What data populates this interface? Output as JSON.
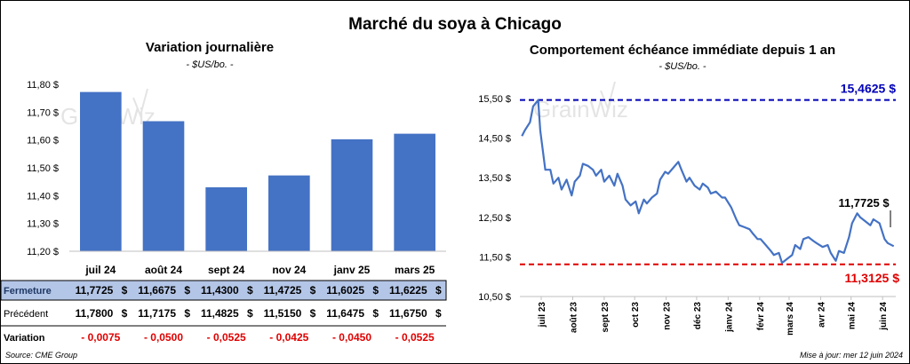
{
  "title": "Marché du soya à Chicago",
  "footer": {
    "source": "Source: CME Group",
    "updated": "Mise à jour: mer 12 juin 2024"
  },
  "watermark": "GrainWiz",
  "colors": {
    "bar": "#4472C4",
    "line": "#4472C4",
    "high": "#0000B8",
    "low": "#E00000",
    "table_highlight": "#B4C6E7",
    "negative": "#E00000"
  },
  "chart_data": [
    {
      "type": "bar",
      "title": "Variation journalière",
      "subtitle": "- $US/bo. -",
      "categories": [
        "juil 24",
        "août 24",
        "sept 24",
        "nov 24",
        "janv 25",
        "mars 25"
      ],
      "values": [
        11.7725,
        11.6675,
        11.43,
        11.4725,
        11.6025,
        11.6225
      ],
      "ylim": [
        11.2,
        11.8
      ],
      "yticks": [
        "11,80 $",
        "11,70 $",
        "11,60 $",
        "11,50 $",
        "11,40 $",
        "11,30 $",
        "11,20 $"
      ],
      "grid": false,
      "table": {
        "rows": [
          {
            "label": "Fermeture",
            "values": [
              "11,7725",
              "11,6675",
              "11,4300",
              "11,4725",
              "11,6025",
              "11,6225"
            ],
            "unit": "$"
          },
          {
            "label": "Précédent",
            "values": [
              "11,7800",
              "11,7175",
              "11,4825",
              "11,5150",
              "11,6475",
              "11,6750"
            ],
            "unit": "$"
          },
          {
            "label": "Variation",
            "values": [
              "- 0,0075",
              "- 0,0500",
              "- 0,0525",
              "- 0,0425",
              "- 0,0450",
              "- 0,0525"
            ],
            "unit": ""
          }
        ]
      }
    },
    {
      "type": "line",
      "title": "Comportement échéance immédiate depuis 1 an",
      "subtitle": "- $US/bo. -",
      "ylim": [
        10.5,
        15.7
      ],
      "yticks": [
        "15,50 $",
        "14,50 $",
        "13,50 $",
        "12,50 $",
        "11,50 $",
        "10,50 $"
      ],
      "xticks": [
        "juil 23",
        "août 23",
        "sept 23",
        "oct 23",
        "nov 23",
        "déc 23",
        "janv 24",
        "févr 24",
        "mars 24",
        "avr 24",
        "mai 24",
        "juin 24"
      ],
      "high": {
        "value": 15.4625,
        "label": "15,4625 $"
      },
      "low": {
        "value": 11.3125,
        "label": "11,3125 $"
      },
      "last": {
        "value": 11.7725,
        "label": "11,7725 $"
      },
      "series": [
        {
          "x": [
            "2023-06-12",
            "2023-06-15",
            "2023-06-20",
            "2023-06-23",
            "2023-06-28",
            "2023-06-30",
            "2023-07-05",
            "2023-07-10",
            "2023-07-13",
            "2023-07-18",
            "2023-07-21",
            "2023-07-26",
            "2023-07-31",
            "2023-08-03",
            "2023-08-08",
            "2023-08-11",
            "2023-08-16",
            "2023-08-21",
            "2023-08-24",
            "2023-08-29",
            "2023-09-01",
            "2023-09-06",
            "2023-09-11",
            "2023-09-14",
            "2023-09-19",
            "2023-09-22",
            "2023-09-27",
            "2023-10-02",
            "2023-10-05",
            "2023-10-10",
            "2023-10-13",
            "2023-10-18",
            "2023-10-23",
            "2023-10-26",
            "2023-10-31",
            "2023-11-03",
            "2023-11-08",
            "2023-11-13",
            "2023-11-16",
            "2023-11-21",
            "2023-11-24",
            "2023-11-29",
            "2023-12-04",
            "2023-12-07",
            "2023-12-12",
            "2023-12-15",
            "2023-12-20",
            "2023-12-26",
            "2023-12-29",
            "2024-01-04",
            "2024-01-09",
            "2024-01-12",
            "2024-01-17",
            "2024-01-22",
            "2024-01-25",
            "2024-01-30",
            "2024-02-02",
            "2024-02-07",
            "2024-02-12",
            "2024-02-15",
            "2024-02-20",
            "2024-02-23",
            "2024-02-28",
            "2024-03-04",
            "2024-03-07",
            "2024-03-12",
            "2024-03-15",
            "2024-03-20",
            "2024-03-25",
            "2024-03-28",
            "2024-04-03",
            "2024-04-08",
            "2024-04-11",
            "2024-04-16",
            "2024-04-19",
            "2024-04-24",
            "2024-04-29",
            "2024-05-02",
            "2024-05-07",
            "2024-05-10",
            "2024-05-15",
            "2024-05-20",
            "2024-05-23",
            "2024-05-29",
            "2024-06-03",
            "2024-06-06",
            "2024-06-12"
          ],
          "y": [
            14.55,
            14.7,
            14.9,
            15.3,
            15.46,
            14.7,
            13.7,
            13.7,
            13.35,
            13.5,
            13.2,
            13.45,
            13.05,
            13.4,
            13.55,
            13.85,
            13.8,
            13.7,
            13.55,
            13.7,
            13.4,
            13.55,
            13.3,
            13.6,
            13.3,
            12.95,
            12.8,
            12.9,
            12.6,
            12.95,
            12.85,
            13.0,
            13.1,
            13.45,
            13.65,
            13.6,
            13.75,
            13.9,
            13.7,
            13.4,
            13.5,
            13.3,
            13.2,
            13.35,
            13.25,
            13.1,
            13.15,
            13.0,
            13.0,
            12.75,
            12.45,
            12.3,
            12.25,
            12.2,
            12.1,
            11.95,
            11.95,
            11.8,
            11.65,
            11.55,
            11.6,
            11.35,
            11.45,
            11.55,
            11.8,
            11.7,
            11.95,
            12.0,
            11.9,
            11.85,
            11.75,
            11.8,
            11.6,
            11.4,
            11.65,
            11.6,
            12.0,
            12.35,
            12.6,
            12.5,
            12.4,
            12.3,
            12.45,
            12.35,
            11.95,
            11.85,
            11.77
          ]
        }
      ]
    }
  ]
}
